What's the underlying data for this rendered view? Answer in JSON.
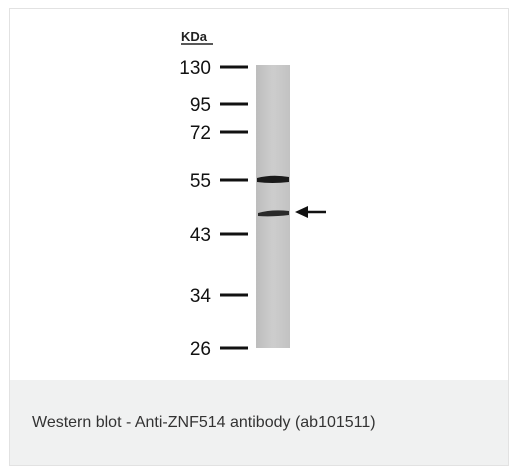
{
  "blot": {
    "unit": "KDa",
    "markers": [
      "130",
      "95",
      "72",
      "55",
      "43",
      "34",
      "26"
    ]
  },
  "caption": "Western blot - Anti-ZNF514 antibody (ab101511)",
  "colors": {
    "lane": "#c9c9c9",
    "band": "#1c1c1c",
    "marker": "#111111",
    "caption_bg": "#f0f1f1",
    "caption_text": "#333333"
  }
}
